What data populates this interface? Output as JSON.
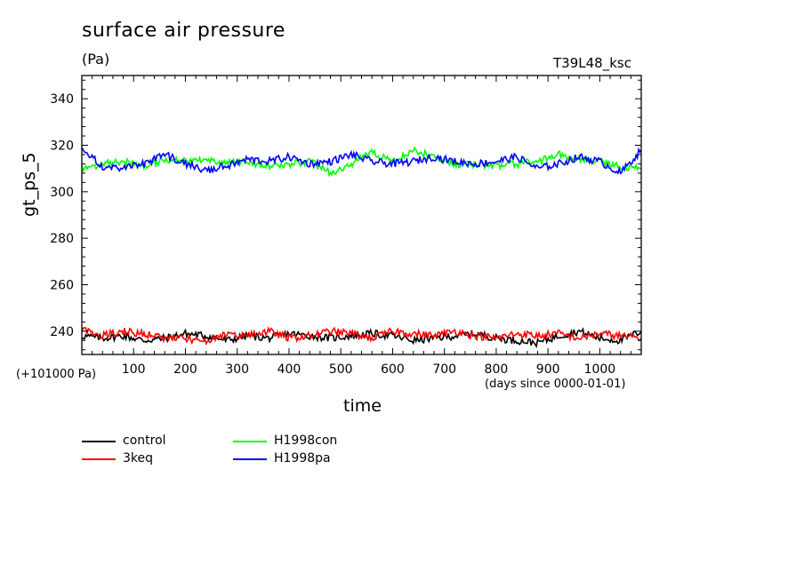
{
  "chart_data": {
    "type": "line",
    "title": "surface air pressure",
    "subtitle": "(Pa)",
    "run_id": "T39L48_ksc",
    "ylabel": "gt_ps_5",
    "xlabel": "time",
    "x_units_note": "(days since 0000-01-01)",
    "y_offset_note": "(+101000 Pa)",
    "xlim": [
      0,
      1080
    ],
    "ylim": [
      230,
      350
    ],
    "x_ticks": [
      100,
      200,
      300,
      400,
      500,
      600,
      700,
      800,
      900,
      1000
    ],
    "x_tick_labels": [
      "100",
      "200",
      "300",
      "400",
      "500",
      "600",
      "700",
      "800",
      "900",
      "1000"
    ],
    "y_ticks": [
      240,
      260,
      280,
      300,
      320,
      340
    ],
    "y_tick_labels": [
      "240",
      "260",
      "280",
      "300",
      "320",
      "340"
    ],
    "grid": false,
    "legend_position": "bottom-left",
    "series": [
      {
        "name": "control",
        "color": "#000000",
        "x": [
          0,
          40,
          80,
          120,
          160,
          200,
          240,
          280,
          320,
          360,
          400,
          440,
          480,
          520,
          560,
          600,
          640,
          680,
          720,
          760,
          800,
          840,
          880,
          920,
          960,
          1000,
          1040,
          1080
        ],
        "y": [
          238,
          237,
          238,
          236,
          237,
          239,
          238,
          236,
          238,
          237,
          239,
          238,
          237,
          238,
          239,
          238,
          236,
          237,
          238,
          239,
          237,
          236,
          235,
          238,
          240,
          237,
          236,
          240
        ]
      },
      {
        "name": "3keq",
        "color": "#ff0000",
        "x": [
          0,
          40,
          80,
          120,
          160,
          200,
          240,
          280,
          320,
          360,
          400,
          440,
          480,
          520,
          560,
          600,
          640,
          680,
          720,
          760,
          800,
          840,
          880,
          920,
          960,
          1000,
          1040,
          1080
        ],
        "y": [
          241,
          238,
          240,
          239,
          237,
          237,
          235,
          239,
          238,
          240,
          237,
          238,
          240,
          239,
          237,
          240,
          239,
          238,
          240,
          238,
          237,
          239,
          238,
          239,
          237,
          239,
          238,
          237
        ]
      },
      {
        "name": "H1998con",
        "color": "#00ff00",
        "x": [
          0,
          40,
          80,
          120,
          160,
          200,
          240,
          280,
          320,
          360,
          400,
          440,
          480,
          520,
          560,
          600,
          640,
          680,
          720,
          760,
          800,
          840,
          880,
          920,
          960,
          1000,
          1040,
          1080
        ],
        "y": [
          310,
          312,
          313,
          311,
          314,
          313,
          314,
          312,
          313,
          311,
          312,
          313,
          308,
          312,
          317,
          313,
          318,
          315,
          312,
          312,
          311,
          312,
          313,
          316,
          314,
          313,
          311,
          310
        ]
      },
      {
        "name": "H1998pa",
        "color": "#0000ff",
        "x": [
          0,
          40,
          80,
          120,
          160,
          200,
          240,
          280,
          320,
          360,
          400,
          440,
          480,
          520,
          560,
          600,
          640,
          680,
          720,
          760,
          800,
          840,
          880,
          920,
          960,
          1000,
          1040,
          1080
        ],
        "y": [
          318,
          311,
          310,
          312,
          316,
          312,
          309,
          311,
          314,
          313,
          315,
          312,
          313,
          316,
          313,
          312,
          313,
          315,
          313,
          312,
          313,
          315,
          310,
          312,
          315,
          313,
          308,
          318
        ]
      }
    ]
  }
}
